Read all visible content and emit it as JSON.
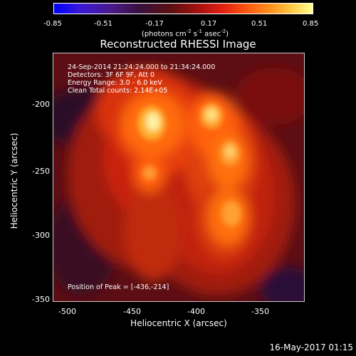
{
  "colorbar": {
    "ticks": [
      "-0.85",
      "-0.51",
      "-0.17",
      "0.17",
      "0.51",
      "0.85"
    ],
    "units_prefix": "(photons cm",
    "units_exp1": "-2",
    "units_mid": " s",
    "units_exp2": "-1",
    "units_mid2": " asec",
    "units_exp3": "-2",
    "units_suffix": ")"
  },
  "title": "Reconstructed RHESSI Image",
  "annotations": {
    "time_range": "24-Sep-2014 21:24:24.000 to 21:34:24.000",
    "detectors": "Detectors: 3F 6F 9F, Att 0",
    "energy": "Energy Range: 3.0 - 6.0 keV",
    "clean": "Clean     Total counts: 2.14E+05",
    "peak": "Position of Peak = [-436,-214]"
  },
  "x_axis": {
    "label": "Heliocentric X (arcsec)",
    "ticks": [
      "-500",
      "-450",
      "-400",
      "-350"
    ]
  },
  "y_axis": {
    "label": "Heliocentric Y (arcsec)",
    "ticks": [
      "-200",
      "-250",
      "-300",
      "-350"
    ]
  },
  "footer": {
    "timestamp": "16-May-2017 01:15"
  }
}
